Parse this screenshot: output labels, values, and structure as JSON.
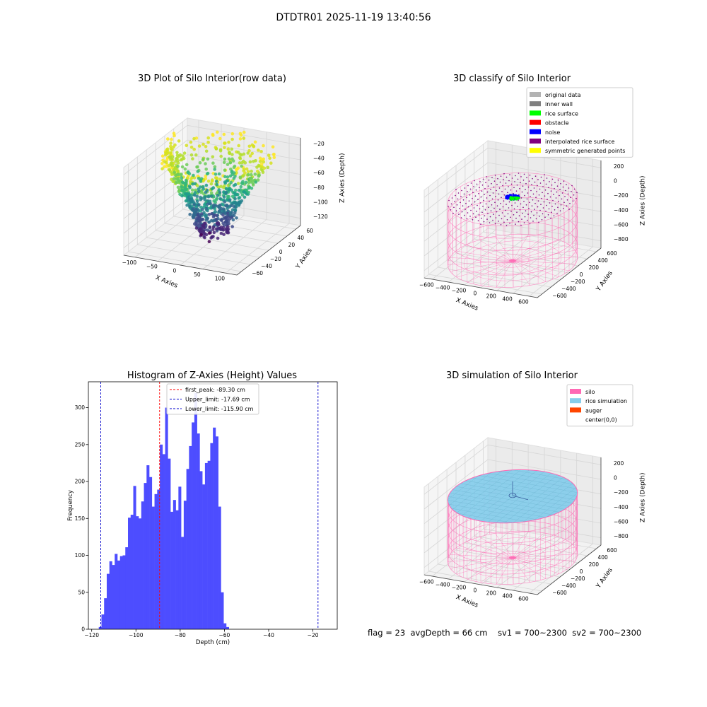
{
  "figure": {
    "suptitle": "DTDTR01 2025-11-19 13:40:56"
  },
  "status": {
    "flag": "flag = 23",
    "avg_depth": "avgDepth = 66 cm",
    "sv1": "sv1 = 700~2300",
    "sv2": "sv2 = 700~2300"
  },
  "colors": {
    "histogram_bar": "#4d4dff",
    "first_peak_line": "#ff0000",
    "limit_line": "#0000cc",
    "silo": "#ff69b4",
    "rice_simulation": "#87ceeb",
    "auger": "#ff4500",
    "rice_surface": "#00ff00",
    "noise": "#0000ff",
    "interpolated": "#800080",
    "symmetric": "#ffff00",
    "original": "#b3b3b3",
    "inner_wall": "#808080"
  },
  "chart_data": [
    {
      "type": "scatter",
      "title": "3D Plot of Silo Interior(row data)",
      "projection": "3d",
      "colormap": "viridis",
      "xlabel": "X Axies",
      "ylabel": "Y Axies",
      "zlabel": "Z Axies (Depth)",
      "xticks": [
        "−100",
        "−50",
        "0",
        "50",
        "100"
      ],
      "yticks": [
        "−60",
        "−40",
        "−20",
        "0",
        "20",
        "40",
        "60"
      ],
      "zticks": [
        "−20",
        "−40",
        "−60",
        "−80",
        "−100",
        "−120"
      ],
      "xlim": [
        -110,
        110
      ],
      "ylim": [
        -65,
        65
      ],
      "zlim": [
        -125,
        -15
      ]
    },
    {
      "type": "scatter",
      "title": "3D classify of Silo Interior",
      "projection": "3d",
      "xlabel": "X Axies",
      "ylabel": "Y Axies",
      "zlabel": "Z Axies (Depth)",
      "xticks": [
        "−600",
        "−400",
        "−200",
        "0",
        "200",
        "400",
        "600"
      ],
      "yticks": [
        "−600",
        "−400",
        "−200",
        "0",
        "200",
        "400",
        "600"
      ],
      "zticks": [
        "200",
        "0",
        "−200",
        "−400",
        "−600",
        "−800"
      ],
      "legend_position": "upper right",
      "legend": [
        {
          "label": "original data",
          "color": "#b3b3b3"
        },
        {
          "label": "inner wall",
          "color": "#808080"
        },
        {
          "label": "rice surface",
          "color": "#00ff00"
        },
        {
          "label": "obstacle",
          "color": "#ff0000"
        },
        {
          "label": "noise",
          "color": "#0000ff"
        },
        {
          "label": "interpolated rice surface",
          "color": "#800080"
        },
        {
          "label": "symmetric generated points",
          "color": "#ffff00"
        }
      ]
    },
    {
      "type": "bar",
      "title": "Histogram of Z-Axies (Height) Values",
      "xlabel": "Depth (cm)",
      "ylabel": "Frequency",
      "xlim": [
        -121.5,
        -9
      ],
      "ylim": [
        0,
        335
      ],
      "xticks": [
        -120,
        -100,
        -80,
        -60,
        -40,
        -20
      ],
      "xtick_labels": [
        "−120",
        "−100",
        "−80",
        "−60",
        "−40",
        "−20"
      ],
      "yticks": [
        0,
        50,
        100,
        150,
        200,
        250,
        300
      ],
      "bin_start": -116.8,
      "bin_width": 1.2,
      "values": [
        3,
        20,
        42,
        75,
        92,
        87,
        102,
        93,
        99,
        100,
        111,
        151,
        155,
        194,
        153,
        150,
        173,
        198,
        222,
        206,
        166,
        183,
        189,
        250,
        237,
        300,
        231,
        159,
        175,
        161,
        193,
        125,
        174,
        217,
        248,
        280,
        320,
        265,
        214,
        196,
        225,
        228,
        252,
        273,
        261,
        166,
        50,
        8,
        3
      ],
      "vlines": [
        {
          "label": "first_peak: -89.30 cm",
          "x": -89.3,
          "color": "#ff0000"
        },
        {
          "label": "Upper_limit: -17.69 cm",
          "x": -17.69,
          "color": "#0000cc"
        },
        {
          "label": "Lower_limit: -115.90 cm",
          "x": -115.9,
          "color": "#0000cc"
        }
      ],
      "legend_position": "upper center"
    },
    {
      "type": "scatter",
      "title": "3D simulation of Silo Interior",
      "projection": "3d",
      "xlabel": "X Axies",
      "ylabel": "Y Axies",
      "zlabel": "Z Axies (Depth)",
      "xticks": [
        "−600",
        "−400",
        "−200",
        "0",
        "200",
        "400",
        "600"
      ],
      "yticks": [
        "−600",
        "−400",
        "−200",
        "0",
        "200",
        "400",
        "600"
      ],
      "zticks": [
        "200",
        "0",
        "−200",
        "−400",
        "−600",
        "−800"
      ],
      "legend_position": "upper right",
      "legend": [
        {
          "label": "silo",
          "color": "#ff69b4"
        },
        {
          "label": "rice simulation",
          "color": "#87ceeb"
        },
        {
          "label": "auger",
          "color": "#ff4500"
        },
        {
          "label": "center(0,0)",
          "color": ""
        }
      ]
    }
  ]
}
